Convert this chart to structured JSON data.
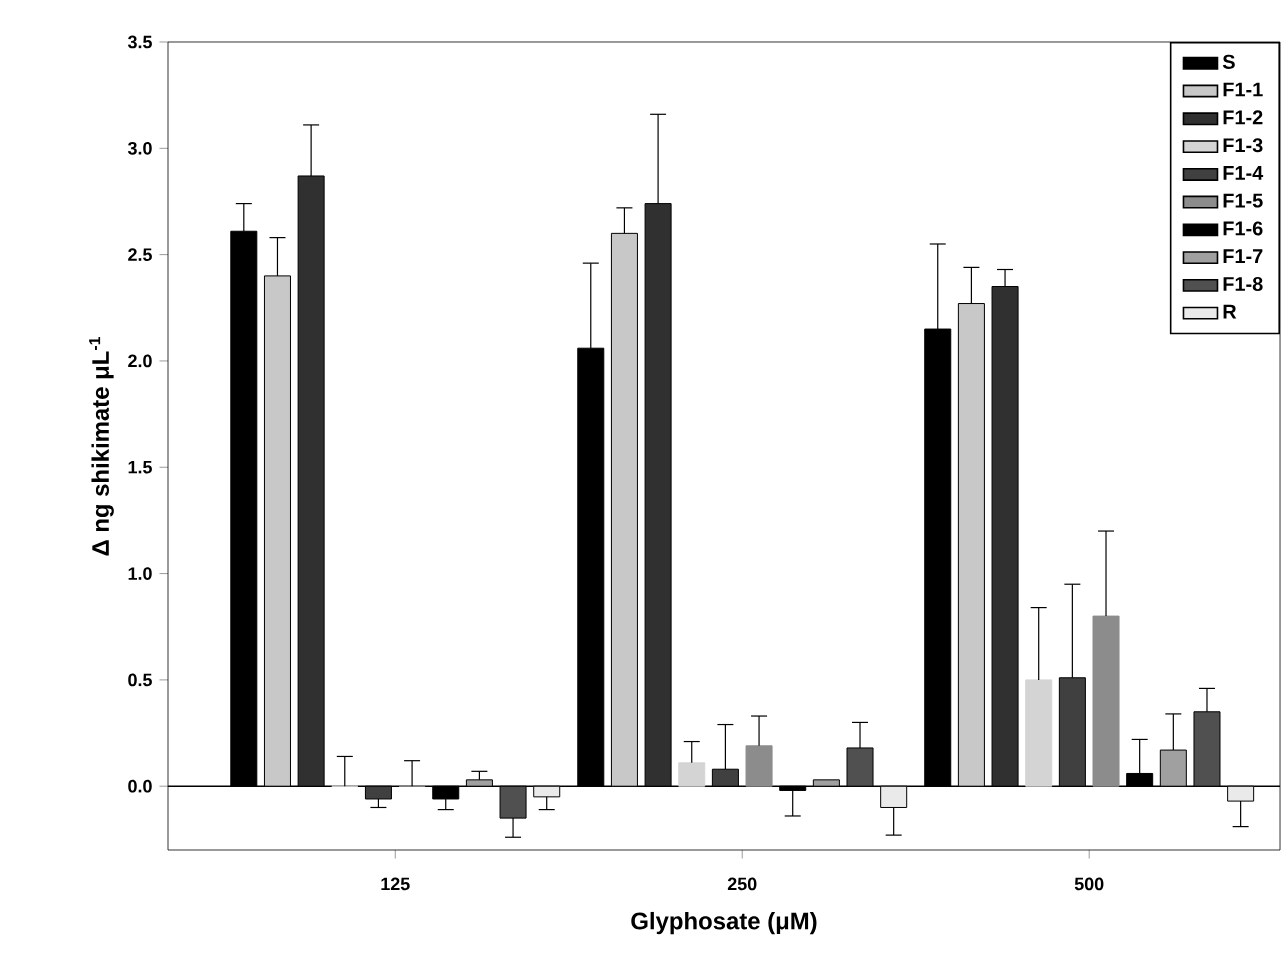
{
  "chart_data": {
    "type": "bar",
    "xlabel": "Glyphosate (μM)",
    "ylabel": "Δ ng shikimate μL$^{-1}$",
    "categories": [
      "125",
      "250",
      "500"
    ],
    "ylim": [
      -0.3,
      3.5
    ],
    "yticks": [
      {
        "value": 0,
        "label": "0.0"
      },
      0.5,
      {
        "value": 1,
        "label": "1.0"
      },
      1.5,
      {
        "value": 2,
        "label": "2.0"
      },
      2.5,
      {
        "value": 3,
        "label": "3.0"
      },
      3.5
    ],
    "legend": "top right",
    "grid": false,
    "ref_lines": [
      {
        "axis": "y",
        "value": 0
      }
    ],
    "series": [
      {
        "name": "S",
        "color": "#000000",
        "values": [
          2.61,
          2.06,
          2.15
        ],
        "errors": [
          0.13,
          0.4,
          0.4
        ]
      },
      {
        "name": "F1-1",
        "color": "#c8c8c8",
        "values": [
          2.4,
          2.6,
          2.27
        ],
        "errors": [
          0.18,
          0.12,
          0.17
        ]
      },
      {
        "name": "F1-2",
        "color": "#303030",
        "values": [
          2.87,
          2.74,
          2.35
        ],
        "errors": [
          0.24,
          0.42,
          0.08
        ]
      },
      {
        "name": "F1-3",
        "color": "#d4d4d4",
        "values": [
          0.0,
          0.11,
          0.5
        ],
        "errors": [
          0.14,
          0.1,
          0.34
        ]
      },
      {
        "name": "F1-4",
        "color": "#404040",
        "values": [
          -0.06,
          0.08,
          0.51
        ],
        "errors": [
          0.04,
          0.21,
          0.44
        ]
      },
      {
        "name": "F1-5",
        "color": "#8c8c8c",
        "values": [
          0.0,
          0.19,
          0.8
        ],
        "errors": [
          0.12,
          0.14,
          0.4
        ]
      },
      {
        "name": "F1-6",
        "color": "#000000",
        "values": [
          -0.06,
          -0.02,
          0.06
        ],
        "errors": [
          0.05,
          0.12,
          0.16
        ]
      },
      {
        "name": "F1-7",
        "color": "#a0a0a0",
        "values": [
          0.03,
          0.03,
          0.17
        ],
        "errors": [
          0.04,
          null,
          0.17
        ]
      },
      {
        "name": "F1-8",
        "color": "#505050",
        "values": [
          -0.15,
          0.18,
          0.35
        ],
        "errors": [
          0.09,
          0.12,
          0.11
        ]
      },
      {
        "name": "R",
        "color": "#eaeaea",
        "values": [
          -0.05,
          -0.1,
          -0.07
        ],
        "errors": [
          0.06,
          0.13,
          0.12
        ]
      }
    ]
  }
}
